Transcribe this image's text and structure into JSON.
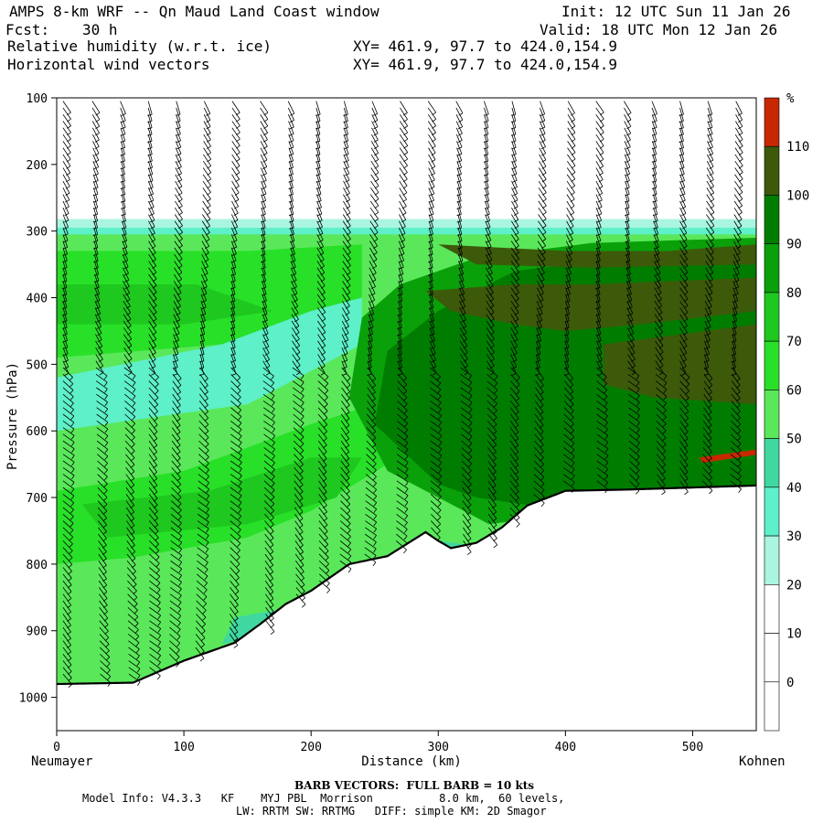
{
  "header": {
    "title_left": "AMPS 8-km WRF -- Qn Maud Land Coast window",
    "init": "Init: 12 UTC Sun 11 Jan 26",
    "fcst_label": "Fcst:",
    "fcst_value": "30 h",
    "valid": "Valid: 18 UTC Mon 12 Jan 26",
    "field1": "Relative humidity (w.r.t. ice)",
    "field1_xy": "XY= 461.9, 97.7 to 424.0,154.9",
    "field2": "Horizontal wind vectors",
    "field2_xy": "XY= 461.9, 97.7 to 424.0,154.9"
  },
  "footer": {
    "barb_note": "BARB VECTORS:  FULL BARB = 10 kts",
    "model_info_1": "Model Info: V4.3.3   KF    MYJ PBL  Morrison          8.0 km,  60 levels,",
    "model_info_2": "LW: RRTM SW: RRTMG   DIFF: simple KM: 2D Smagor"
  },
  "chart_data": {
    "type": "heatmap",
    "title": "Relative humidity (w.r.t. ice)",
    "xlabel": "Distance (km)",
    "ylabel": "Pressure (hPa)",
    "x_ticks": [
      0,
      100,
      200,
      300,
      400,
      500
    ],
    "xlim": [
      0,
      550
    ],
    "y_ticks": [
      100,
      200,
      300,
      400,
      500,
      600,
      700,
      800,
      900,
      1000
    ],
    "ylim": [
      100,
      1050
    ],
    "y_inverted": true,
    "x_end_labels": {
      "left": "Neumayer",
      "right": "Kohnen"
    },
    "colorbar": {
      "unit": "%",
      "levels": [
        0,
        10,
        20,
        30,
        40,
        50,
        60,
        70,
        80,
        90,
        100,
        110
      ],
      "colors": [
        "#ffffff",
        "#ffffff",
        "#ffffff",
        "#aaf5e0",
        "#5ef0c8",
        "#40d8a0",
        "#5ae85a",
        "#28e028",
        "#1ec81e",
        "#0aa00a",
        "#007d00",
        "#3c5a0a",
        "#c82800"
      ]
    },
    "terrain_pressure": [
      [
        0,
        980
      ],
      [
        60,
        978
      ],
      [
        100,
        945
      ],
      [
        140,
        918
      ],
      [
        160,
        890
      ],
      [
        180,
        860
      ],
      [
        200,
        840
      ],
      [
        230,
        800
      ],
      [
        260,
        788
      ],
      [
        290,
        752
      ],
      [
        300,
        765
      ],
      [
        310,
        776
      ],
      [
        330,
        768
      ],
      [
        350,
        745
      ],
      [
        370,
        712
      ],
      [
        400,
        690
      ],
      [
        450,
        688
      ],
      [
        500,
        685
      ],
      [
        550,
        682
      ]
    ],
    "rh_regions": [
      {
        "label": "30",
        "top_pressure": 282
      },
      {
        "label": "40",
        "top_pressure": 295
      },
      {
        "label": "90",
        "description": "core 380-680 hPa, x 230-550 km"
      },
      {
        "label": "100",
        "description": "max 380-560 hPa, x 300-550 km"
      },
      {
        "label": "110",
        "description": "x 500-550 km near 640 hPa"
      }
    ],
    "barbs": {
      "note": "BARB VECTORS: FULL BARB = 10 kts",
      "columns_x": [
        5,
        28,
        50,
        72,
        94,
        116,
        138,
        160,
        182,
        204,
        226,
        248,
        270,
        292,
        314,
        336,
        358,
        380,
        402,
        424,
        446,
        468,
        490,
        512,
        534
      ]
    }
  }
}
